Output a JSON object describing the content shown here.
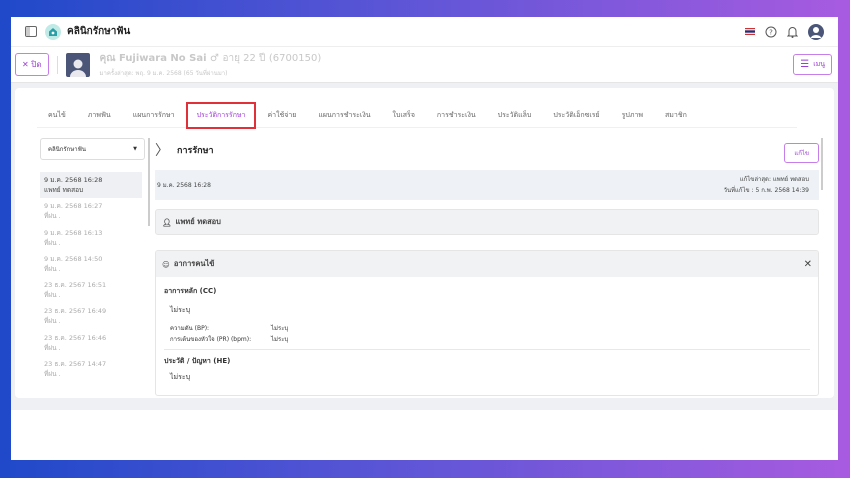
{
  "header": {
    "title": "คลินิกรักษาฟัน",
    "icons": [
      "sidebar-toggle-icon",
      "clinic-home-icon",
      "thai-flag-icon",
      "help-icon",
      "bell-icon",
      "user-avatar-icon"
    ]
  },
  "patient": {
    "close_label": "ปิด",
    "name": "คุณ Fujiwara No Sai",
    "gender_icon": "♂",
    "age": "อายุ 22 ปี",
    "hn": "(6700150)",
    "last_visit": "มาครั้งล่าสุด: พฤ. 9 ม.ค. 2568 (65 วันที่ผ่านมา)",
    "menu_label": "เมนู"
  },
  "tabs": [
    {
      "label": "คนไข้"
    },
    {
      "label": "ภาพฟัน"
    },
    {
      "label": "แผนการรักษา"
    },
    {
      "label": "ประวัติการรักษา",
      "active": true
    },
    {
      "label": "ค่าใช้จ่าย"
    },
    {
      "label": "แผนการชำระเงิน"
    },
    {
      "label": "ใบเสร็จ"
    },
    {
      "label": "การชำระเงิน"
    },
    {
      "label": "ประวัติแล็บ"
    },
    {
      "label": "ประวัติเอ็กซเรย์"
    },
    {
      "label": "รูปภาพ"
    },
    {
      "label": "สมาชิก"
    }
  ],
  "sidebar": {
    "clinic_select": "คลินิกรักษาฟัน",
    "history": [
      {
        "date": "9 ม.ค. 2568 16:28",
        "by": "แพทย์ ทดสอบ"
      },
      {
        "date": "9 ม.ค. 2568 16:27",
        "by": "ที่ผ่น ."
      },
      {
        "date": "9 ม.ค. 2568 16:13",
        "by": "ที่ผ่น ."
      },
      {
        "date": "9 ม.ค. 2568 14:50",
        "by": "ที่ผ่น ."
      },
      {
        "date": "23 ธ.ค. 2567 16:51",
        "by": "ที่ผ่น ."
      },
      {
        "date": "23 ธ.ค. 2567 16:49",
        "by": "ที่ผ่น ."
      },
      {
        "date": "23 ธ.ค. 2567 16:46",
        "by": "ที่ผ่น ."
      },
      {
        "date": "23 ธ.ค. 2567 14:47",
        "by": "ที่ผ่น ."
      }
    ]
  },
  "main": {
    "title": "การรักษา",
    "edit_label": "แก้ไข",
    "date": "9 ม.ค. 2568 16:28",
    "last_edited_by": "แก้ไขล่าสุด: แพทย์ ทดสอบ",
    "edited_at": "วันที่แก้ไข : 5 ก.พ. 2568 14:39",
    "doctor": "แพทย์ ทดสอบ",
    "symptoms": {
      "title": "อาการคนไข้",
      "cc_title": "อาการหลัก (CC)",
      "cc_value": "ไม่ระบุ",
      "bp_label": "ความดัน (BP):",
      "bp_value": "ไม่ระบุ",
      "pr_label": "การเต้นของหัวใจ (PR) (bpm):",
      "pr_value": "ไม่ระบุ",
      "he_title": "ประวัติ / ปัญหา (HE)",
      "he_value": "ไม่ระบุ"
    }
  },
  "colors": {
    "accent": "#a23fd8",
    "highlight": "#e0303a"
  }
}
